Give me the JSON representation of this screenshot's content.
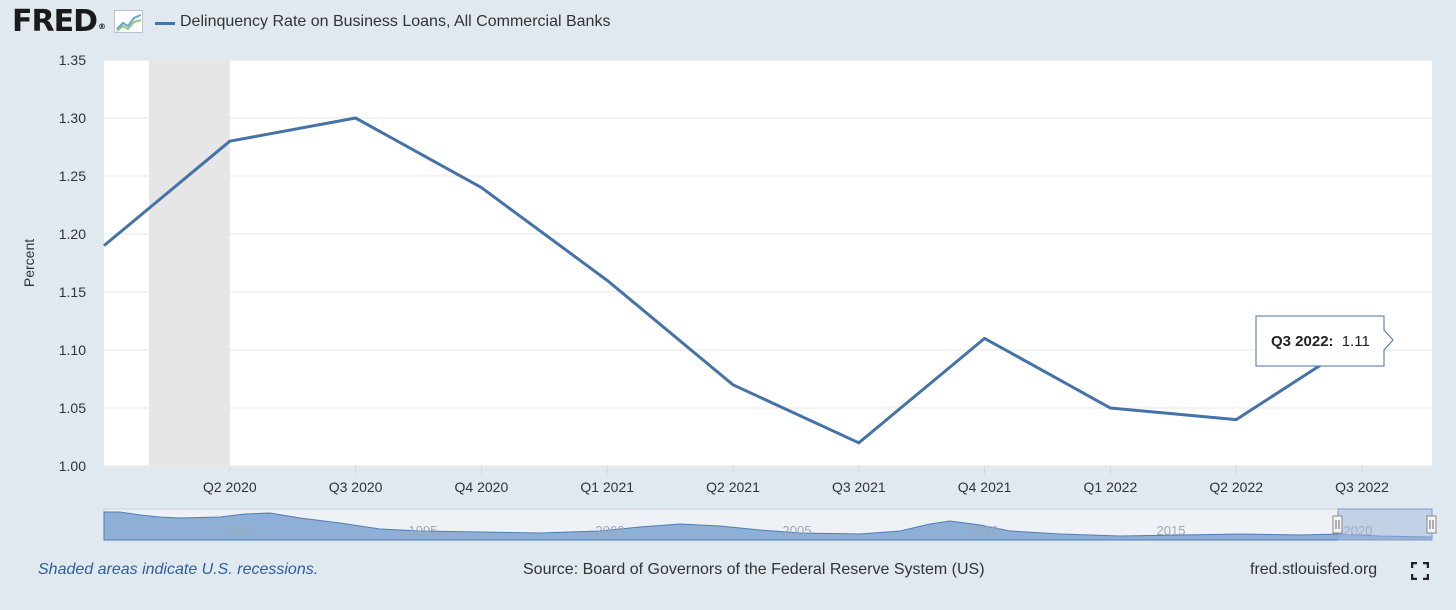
{
  "brand": {
    "logo_text": "FRED",
    "logo_mark": "®"
  },
  "legend": {
    "series_name": "Delinquency Rate on Business Loans, All Commercial Banks",
    "color": "#4572a7"
  },
  "footer": {
    "recession_note": "Shaded areas indicate U.S. recessions.",
    "source": "Source: Board of Governors of the Federal Reserve System (US)",
    "site": "fred.stlouisfed.org"
  },
  "tooltip": {
    "label": "Q3 2022:",
    "value": "1.11"
  },
  "navigator": {
    "years": [
      "1990",
      "1995",
      "2000",
      "2005",
      "2010",
      "2015",
      "2020"
    ]
  },
  "chart_data": {
    "type": "line",
    "ylabel": "Percent",
    "ylim": [
      1.0,
      1.35
    ],
    "yticks": [
      "1.00",
      "1.05",
      "1.10",
      "1.15",
      "1.20",
      "1.25",
      "1.30",
      "1.35"
    ],
    "xticks": [
      "Q2 2020",
      "Q3 2020",
      "Q4 2020",
      "Q1 2021",
      "Q2 2021",
      "Q3 2021",
      "Q4 2021",
      "Q1 2022",
      "Q2 2022",
      "Q3 2022"
    ],
    "x": [
      "Q1 2020",
      "Q2 2020",
      "Q3 2020",
      "Q4 2020",
      "Q1 2021",
      "Q2 2021",
      "Q3 2021",
      "Q4 2021",
      "Q1 2022",
      "Q2 2022",
      "Q3 2022"
    ],
    "series": [
      {
        "name": "Delinquency Rate on Business Loans, All Commercial Banks",
        "values": [
          1.19,
          1.28,
          1.3,
          1.24,
          1.16,
          1.07,
          1.02,
          1.11,
          1.05,
          1.04,
          1.11
        ]
      }
    ],
    "recession_shading": {
      "from": "Q1 2020",
      "to": "Q2 2020"
    },
    "grid": true,
    "line_color": "#4572a7"
  }
}
